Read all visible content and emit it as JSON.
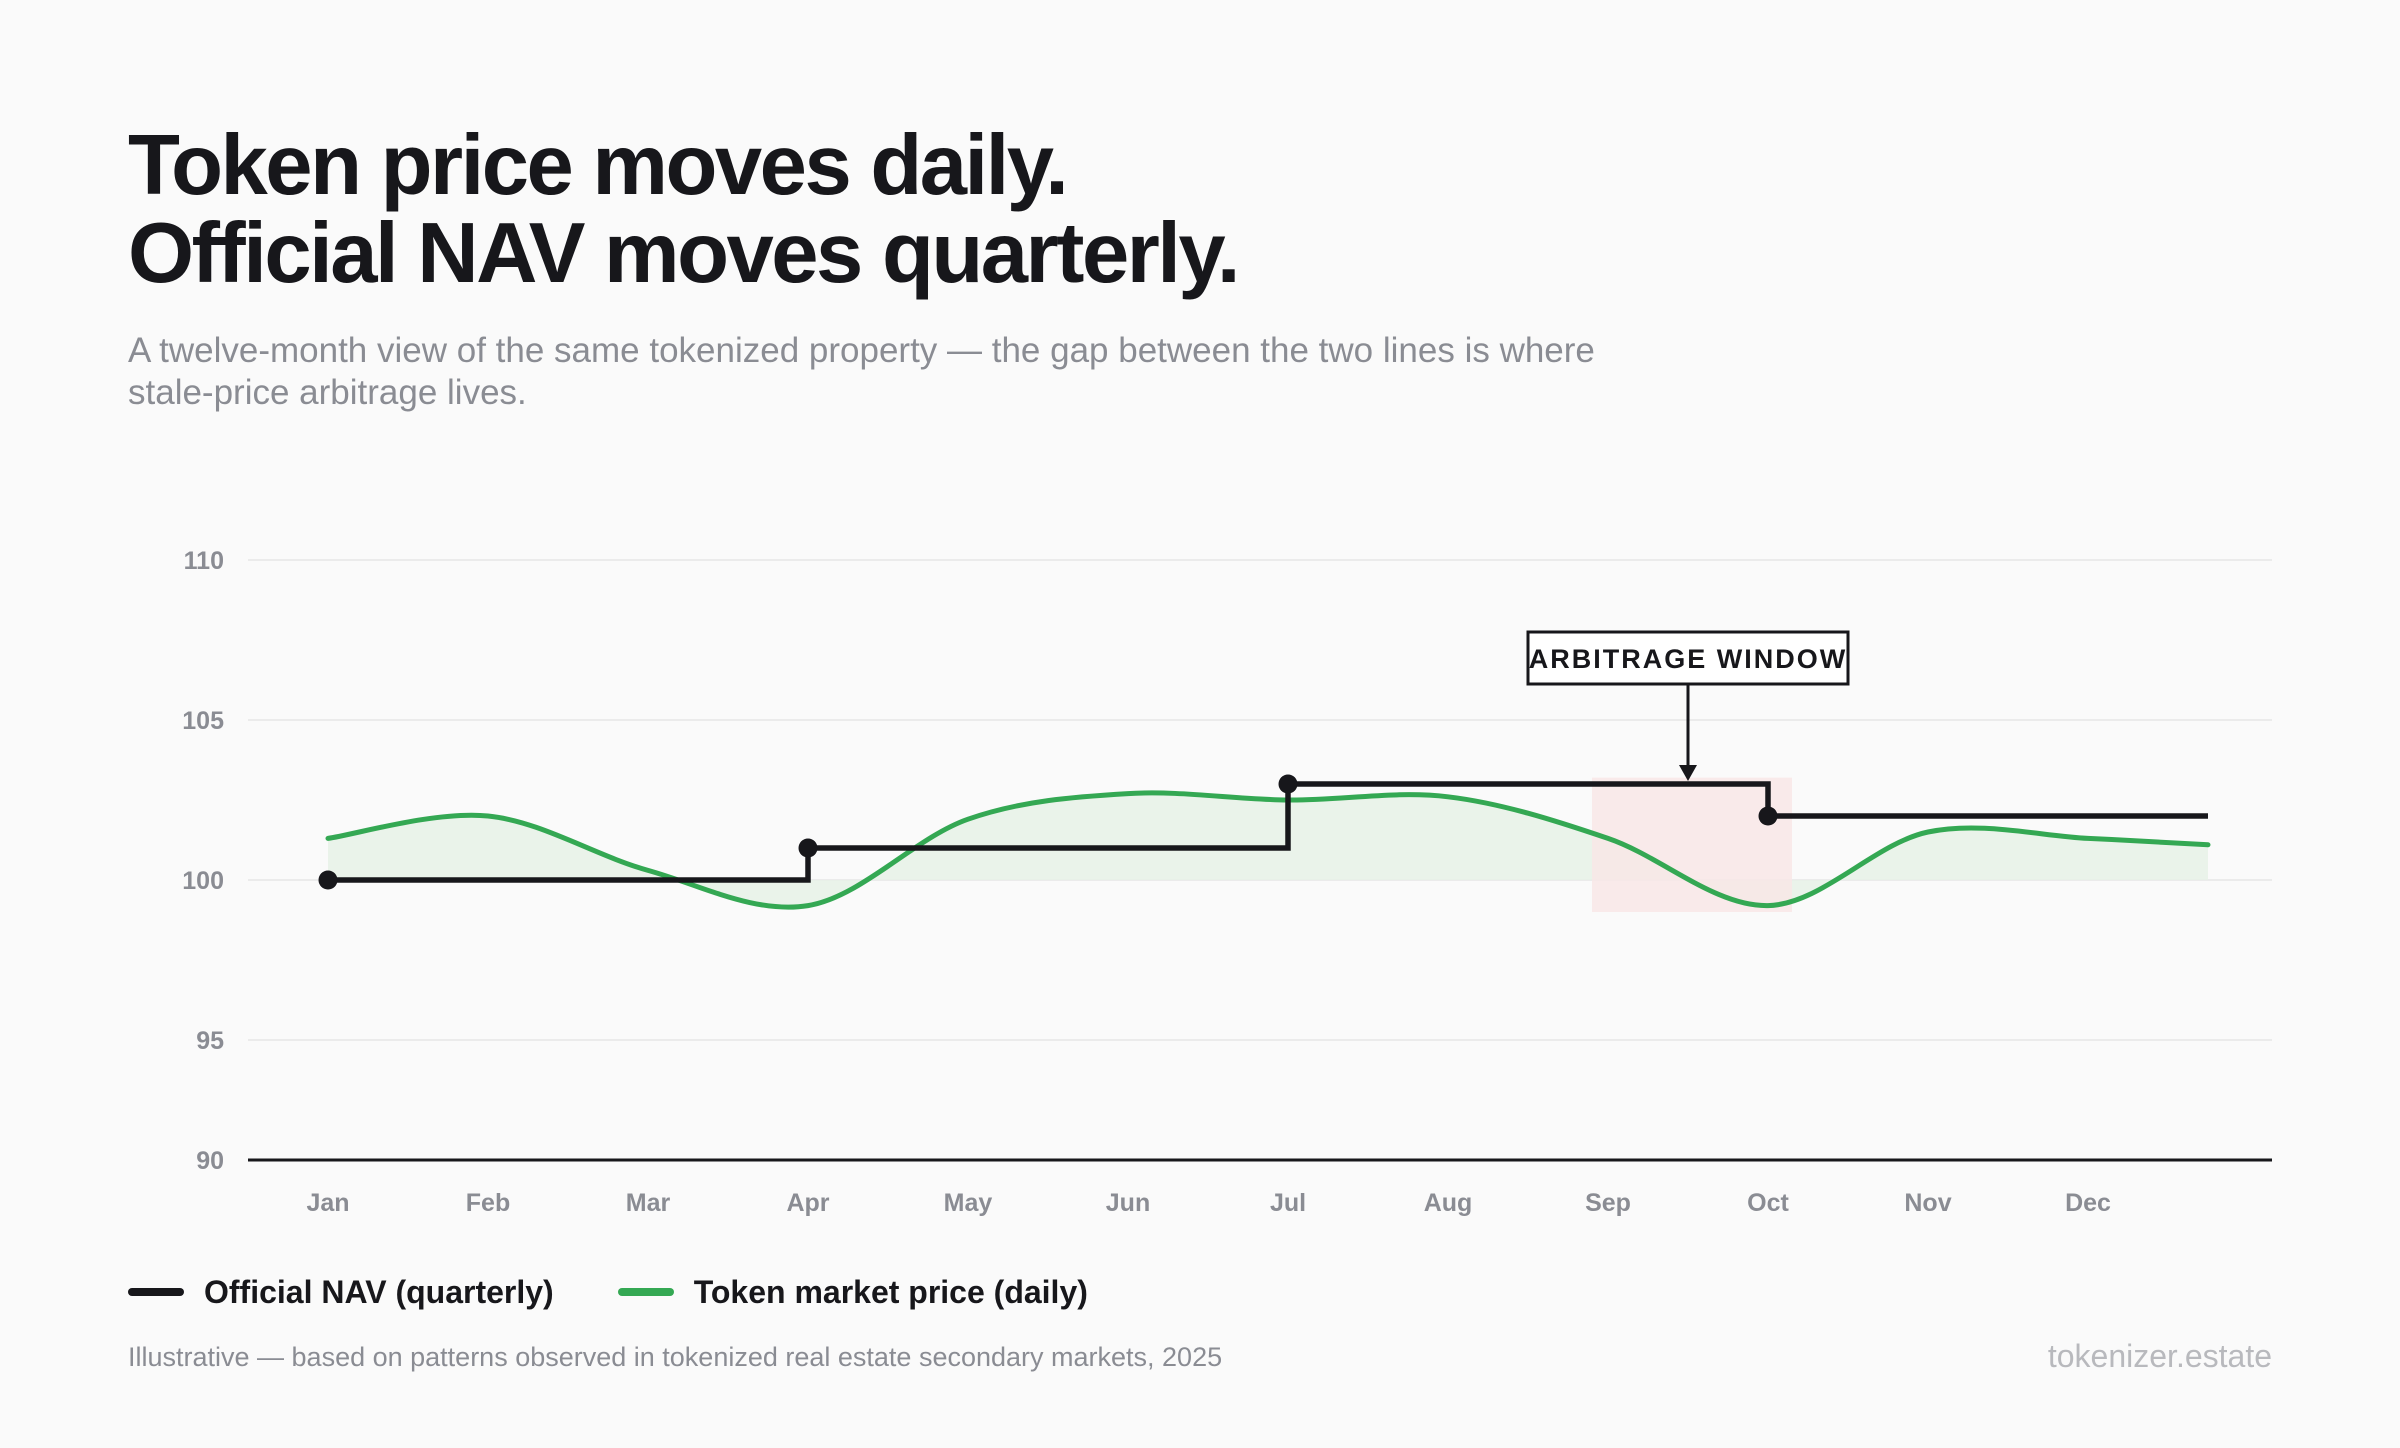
{
  "header": {
    "title_line1": "Token price moves daily.",
    "title_line2": "Official NAV moves quarterly.",
    "subtitle_line1": "A twelve-month view of the same tokenized property — the gap between the two lines is where",
    "subtitle_line2": "stale-price arbitrage lives."
  },
  "footer": {
    "note": "Illustrative — based on patterns observed in tokenized real estate secondary markets, 2025",
    "brand": "tokenizer.estate"
  },
  "colors": {
    "nav": "#17171b",
    "token": "#34a853",
    "token_fill": "#e6f1e6",
    "window_fill": "#f8e6e6",
    "grid": "#e6e6e6",
    "axis": "#17171b"
  },
  "chart_data": {
    "type": "line",
    "title": "",
    "xlabel": "",
    "ylabel": "",
    "categories": [
      "Jan",
      "Feb",
      "Mar",
      "Apr",
      "May",
      "Jun",
      "Jul",
      "Aug",
      "Sep",
      "Oct",
      "Nov",
      "Dec"
    ],
    "ylim": [
      90,
      110
    ],
    "yticks": [
      "90",
      "95",
      "100",
      "105",
      "110"
    ],
    "grid": true,
    "legend": "bottom-left",
    "series": [
      {
        "name": "Official NAV (quarterly)",
        "step": true,
        "x": [
          0,
          3,
          3,
          6,
          6,
          9,
          9,
          11.75
        ],
        "y": [
          100,
          100,
          101,
          101,
          103,
          103,
          102,
          102
        ],
        "markers": [
          [
            0,
            100
          ],
          [
            3,
            101
          ],
          [
            6,
            103
          ],
          [
            9,
            102
          ]
        ]
      },
      {
        "name": "Token market price (daily)",
        "x": [
          0,
          1,
          2,
          3,
          4,
          5,
          6,
          7,
          8,
          9,
          10,
          11,
          11.75
        ],
        "y": [
          101.3,
          102.0,
          100.3,
          99.2,
          101.9,
          102.7,
          102.5,
          102.6,
          101.3,
          99.2,
          101.5,
          101.3,
          101.1
        ]
      }
    ],
    "annotations": [
      {
        "label": "ARBITRAGE WINDOW",
        "x_from": 7.9,
        "x_to": 9.15,
        "y_from": 99.0,
        "y_to": 103.2,
        "point_x": 8.5,
        "point_y": 103
      }
    ]
  }
}
